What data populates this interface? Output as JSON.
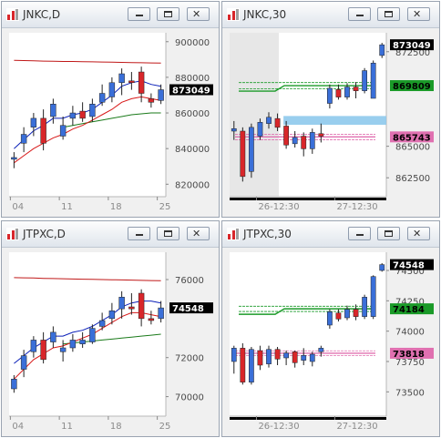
{
  "colors": {
    "bull": "#3a6fd8",
    "bear": "#d8262a",
    "ma_short": "#0a1fb8",
    "ma_mid": "#d81818",
    "ma_long": "#1a7a1a",
    "ma_200": "#c01818",
    "axis_text": "#4a4a4a",
    "last_price_bg": "#000000",
    "level_green": "#1a9a28",
    "level_pink": "#e070b0",
    "highlight_blue": "#8ec9ec"
  },
  "windows": [
    {
      "title": "JNKC,D",
      "chart_data": {
        "type": "candlestick",
        "y_ticks": [
          "900000",
          "880000",
          "860000",
          "840000",
          "820000"
        ],
        "y_tick_values": [
          900000,
          880000,
          860000,
          840000,
          820000
        ],
        "ylim": [
          813000,
          905000
        ],
        "x_labels": [
          "04",
          "11",
          "18",
          "25"
        ],
        "x_label_index": [
          0,
          5,
          10,
          15
        ],
        "last_price_label": "873049",
        "last_price": 873049,
        "candles": [
          {
            "o": 834000,
            "h": 838000,
            "l": 829000,
            "c": 835000
          },
          {
            "o": 843000,
            "h": 852000,
            "l": 838000,
            "c": 848000
          },
          {
            "o": 852000,
            "h": 860000,
            "l": 847000,
            "c": 857000
          },
          {
            "o": 857000,
            "h": 862000,
            "l": 839000,
            "c": 843000
          },
          {
            "o": 858000,
            "h": 868000,
            "l": 854000,
            "c": 865000
          },
          {
            "o": 847000,
            "h": 858000,
            "l": 845000,
            "c": 853000
          },
          {
            "o": 857000,
            "h": 864000,
            "l": 853000,
            "c": 860000
          },
          {
            "o": 861000,
            "h": 866000,
            "l": 855000,
            "c": 857000
          },
          {
            "o": 858000,
            "h": 868000,
            "l": 855000,
            "c": 865000
          },
          {
            "o": 866000,
            "h": 876000,
            "l": 864000,
            "c": 871000
          },
          {
            "o": 869000,
            "h": 880000,
            "l": 866000,
            "c": 877000
          },
          {
            "o": 877000,
            "h": 885000,
            "l": 870000,
            "c": 882000
          },
          {
            "o": 878000,
            "h": 883000,
            "l": 873000,
            "c": 877000
          },
          {
            "o": 883000,
            "h": 886000,
            "l": 866000,
            "c": 871000
          },
          {
            "o": 868000,
            "h": 871000,
            "l": 863000,
            "c": 866000
          },
          {
            "o": 867000,
            "h": 876000,
            "l": 865000,
            "c": 873049
          }
        ],
        "ma_200": [
          889500,
          889400,
          889300,
          889100,
          889000,
          888900,
          888900,
          888800,
          888700,
          888600,
          888500,
          888400,
          888300,
          888200,
          888100,
          888000
        ],
        "ma_mid": [
          832000,
          836000,
          840000,
          843000,
          846000,
          848000,
          851000,
          853000,
          856000,
          859000,
          862000,
          866000,
          868000,
          869000,
          868000,
          867000
        ],
        "ma_short": [
          840000,
          845000,
          850000,
          853000,
          857000,
          857000,
          859000,
          860000,
          862000,
          866000,
          870000,
          875000,
          877000,
          878000,
          876000,
          875000
        ],
        "ma_long": [
          null,
          null,
          null,
          null,
          null,
          852000,
          853000,
          854000,
          855000,
          856000,
          857000,
          858000,
          859000,
          859500,
          860000,
          860000
        ]
      }
    },
    {
      "title": "JNKC,30",
      "chart_data": {
        "type": "candlestick",
        "y_ticks": [
          "872500",
          "865000",
          "862500"
        ],
        "y_tick_values": [
          872500,
          865000,
          862500
        ],
        "ylim": [
          861000,
          874000
        ],
        "x_labels": [
          "26-12:30",
          "27-12:30"
        ],
        "x_label_index": [
          3,
          12
        ],
        "last_price_label": "873049",
        "last_price": 873049,
        "level_labels": [
          {
            "text": "869809",
            "value": 869809,
            "color": "#1a9a28"
          },
          {
            "text": "865743",
            "value": 865743,
            "color": "#e070b0"
          }
        ],
        "highlight_zone": {
          "from_index": 6,
          "low": 866700,
          "high": 867400
        },
        "green_levels": [
          870050,
          869809,
          869570
        ],
        "pink_levels": [
          865950,
          865743,
          865520
        ],
        "candles": [
          {
            "o": 866200,
            "h": 867000,
            "l": 865500,
            "c": 866400
          },
          {
            "o": 866200,
            "h": 866500,
            "l": 862200,
            "c": 862600
          },
          {
            "o": 863000,
            "h": 866800,
            "l": 862500,
            "c": 866500
          },
          {
            "o": 865800,
            "h": 867200,
            "l": 865500,
            "c": 866900
          },
          {
            "o": 866800,
            "h": 867700,
            "l": 866400,
            "c": 867300
          },
          {
            "o": 867200,
            "h": 867600,
            "l": 866200,
            "c": 866500
          },
          {
            "o": 866600,
            "h": 867000,
            "l": 864800,
            "c": 865100
          },
          {
            "o": 865200,
            "h": 866200,
            "l": 864900,
            "c": 865700
          },
          {
            "o": 865800,
            "h": 866100,
            "l": 864200,
            "c": 864800
          },
          {
            "o": 864800,
            "h": 866400,
            "l": 864400,
            "c": 866100
          },
          {
            "o": 866000,
            "h": 866800,
            "l": 865300,
            "c": 865800
          },
          {
            "o": 868400,
            "h": 869900,
            "l": 868000,
            "c": 869600
          },
          {
            "o": 869500,
            "h": 869900,
            "l": 868700,
            "c": 868900
          },
          {
            "o": 868900,
            "h": 870000,
            "l": 868700,
            "c": 869700
          },
          {
            "o": 869700,
            "h": 870100,
            "l": 868800,
            "c": 869400
          },
          {
            "o": 869400,
            "h": 871200,
            "l": 869200,
            "c": 871000
          },
          {
            "o": 868800,
            "h": 871800,
            "l": 868800,
            "c": 871600
          },
          {
            "o": 872200,
            "h": 873200,
            "l": 872000,
            "c": 873049
          }
        ]
      }
    },
    {
      "title": "JTPXC,D",
      "chart_data": {
        "type": "candlestick",
        "y_ticks": [
          "76000",
          "72000",
          "70000"
        ],
        "y_tick_values": [
          76000,
          72000,
          70000
        ],
        "ylim": [
          69000,
          77400
        ],
        "x_labels": [
          "04",
          "11",
          "18",
          "25"
        ],
        "x_label_index": [
          0,
          5,
          10,
          15
        ],
        "last_price_label": "74548",
        "last_price": 74548,
        "candles": [
          {
            "o": 70400,
            "h": 71100,
            "l": 70200,
            "c": 70900
          },
          {
            "o": 71400,
            "h": 72400,
            "l": 71000,
            "c": 72100
          },
          {
            "o": 72300,
            "h": 73100,
            "l": 72000,
            "c": 72900
          },
          {
            "o": 72900,
            "h": 73300,
            "l": 71700,
            "c": 71900
          },
          {
            "o": 72800,
            "h": 73600,
            "l": 72500,
            "c": 73300
          },
          {
            "o": 72300,
            "h": 72900,
            "l": 71800,
            "c": 72500
          },
          {
            "o": 72500,
            "h": 73200,
            "l": 72300,
            "c": 72900
          },
          {
            "o": 72700,
            "h": 73300,
            "l": 72500,
            "c": 72900
          },
          {
            "o": 72800,
            "h": 73700,
            "l": 72700,
            "c": 73500
          },
          {
            "o": 73600,
            "h": 74300,
            "l": 73400,
            "c": 73900
          },
          {
            "o": 74000,
            "h": 74800,
            "l": 73700,
            "c": 74400
          },
          {
            "o": 74500,
            "h": 75400,
            "l": 74000,
            "c": 75100
          },
          {
            "o": 74600,
            "h": 75300,
            "l": 74200,
            "c": 74500
          },
          {
            "o": 75300,
            "h": 75500,
            "l": 73600,
            "c": 74000
          },
          {
            "o": 74000,
            "h": 74400,
            "l": 73700,
            "c": 73900
          },
          {
            "o": 74000,
            "h": 74900,
            "l": 73800,
            "c": 74548
          }
        ],
        "ma_200": [
          76100,
          76090,
          76080,
          76060,
          76050,
          76040,
          76030,
          76020,
          76010,
          76000,
          75990,
          75980,
          75970,
          75960,
          75950,
          75940
        ],
        "ma_mid": [
          70900,
          71400,
          71900,
          72200,
          72500,
          72600,
          72800,
          73000,
          73200,
          73500,
          73800,
          74100,
          74300,
          74300,
          74200,
          74100
        ],
        "ma_short": [
          71700,
          72100,
          72500,
          72800,
          73100,
          73100,
          73300,
          73400,
          73600,
          73900,
          74200,
          74600,
          74800,
          74900,
          74900,
          74800
        ],
        "ma_long": [
          null,
          null,
          null,
          null,
          null,
          72700,
          72750,
          72800,
          72850,
          72900,
          72950,
          73000,
          73050,
          73100,
          73150,
          73200
        ]
      }
    },
    {
      "title": "JTPXC,30",
      "chart_data": {
        "type": "candlestick",
        "y_ticks": [
          "74500",
          "74250",
          "74000",
          "73750",
          "73500"
        ],
        "y_tick_values": [
          74500,
          74250,
          74000,
          73750,
          73500
        ],
        "ylim": [
          73300,
          74650
        ],
        "x_labels": [
          "26-12:30",
          "27-12:30"
        ],
        "x_label_index": [
          3,
          12
        ],
        "last_price_label": "74548",
        "last_price": 74548,
        "level_labels": [
          {
            "text": "74184",
            "value": 74184,
            "color": "#1a9a28"
          },
          {
            "text": "73818",
            "value": 73818,
            "color": "#e070b0"
          }
        ],
        "green_levels": [
          74205,
          74184,
          74162
        ],
        "pink_levels": [
          73838,
          73818,
          73798
        ],
        "candles": [
          {
            "o": 73750,
            "h": 73880,
            "l": 73650,
            "c": 73860
          },
          {
            "o": 73860,
            "h": 73900,
            "l": 73560,
            "c": 73580
          },
          {
            "o": 73580,
            "h": 73870,
            "l": 73560,
            "c": 73850
          },
          {
            "o": 73840,
            "h": 73880,
            "l": 73680,
            "c": 73720
          },
          {
            "o": 73730,
            "h": 73880,
            "l": 73700,
            "c": 73850
          },
          {
            "o": 73850,
            "h": 73870,
            "l": 73720,
            "c": 73770
          },
          {
            "o": 73780,
            "h": 73840,
            "l": 73720,
            "c": 73820
          },
          {
            "o": 73830,
            "h": 73840,
            "l": 73700,
            "c": 73740
          },
          {
            "o": 73760,
            "h": 73860,
            "l": 73720,
            "c": 73800
          },
          {
            "o": 73750,
            "h": 73830,
            "l": 73710,
            "c": 73810
          },
          {
            "o": 73830,
            "h": 73880,
            "l": 73790,
            "c": 73860
          },
          {
            "o": 74050,
            "h": 74180,
            "l": 74020,
            "c": 74160
          },
          {
            "o": 74150,
            "h": 74180,
            "l": 74080,
            "c": 74100
          },
          {
            "o": 74110,
            "h": 74210,
            "l": 74090,
            "c": 74180
          },
          {
            "o": 74180,
            "h": 74220,
            "l": 74090,
            "c": 74120
          },
          {
            "o": 74120,
            "h": 74300,
            "l": 74100,
            "c": 74280
          },
          {
            "o": 74120,
            "h": 74460,
            "l": 74100,
            "c": 74450
          },
          {
            "o": 74500,
            "h": 74560,
            "l": 74490,
            "c": 74548
          }
        ]
      }
    }
  ]
}
